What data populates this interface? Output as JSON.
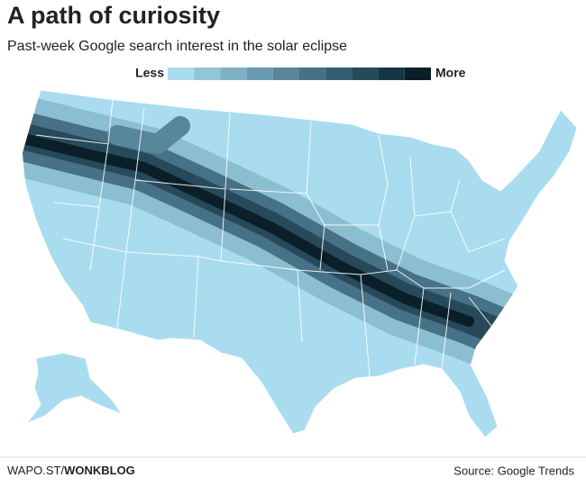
{
  "header": {
    "title": "A path of curiosity",
    "subtitle": "Past-week Google search interest in the solar eclipse"
  },
  "legend": {
    "low_label": "Less",
    "high_label": "More",
    "colors": [
      "#a9dcef",
      "#93c5d9",
      "#7fb0c4",
      "#6b9bb0",
      "#58869b",
      "#467186",
      "#355d70",
      "#264a5a",
      "#173644",
      "#0a1f28"
    ]
  },
  "footer": {
    "credit_prefix": "WAPO.ST/",
    "credit_bold": "WONKBLOG",
    "source": "Source: Google Trends"
  }
}
